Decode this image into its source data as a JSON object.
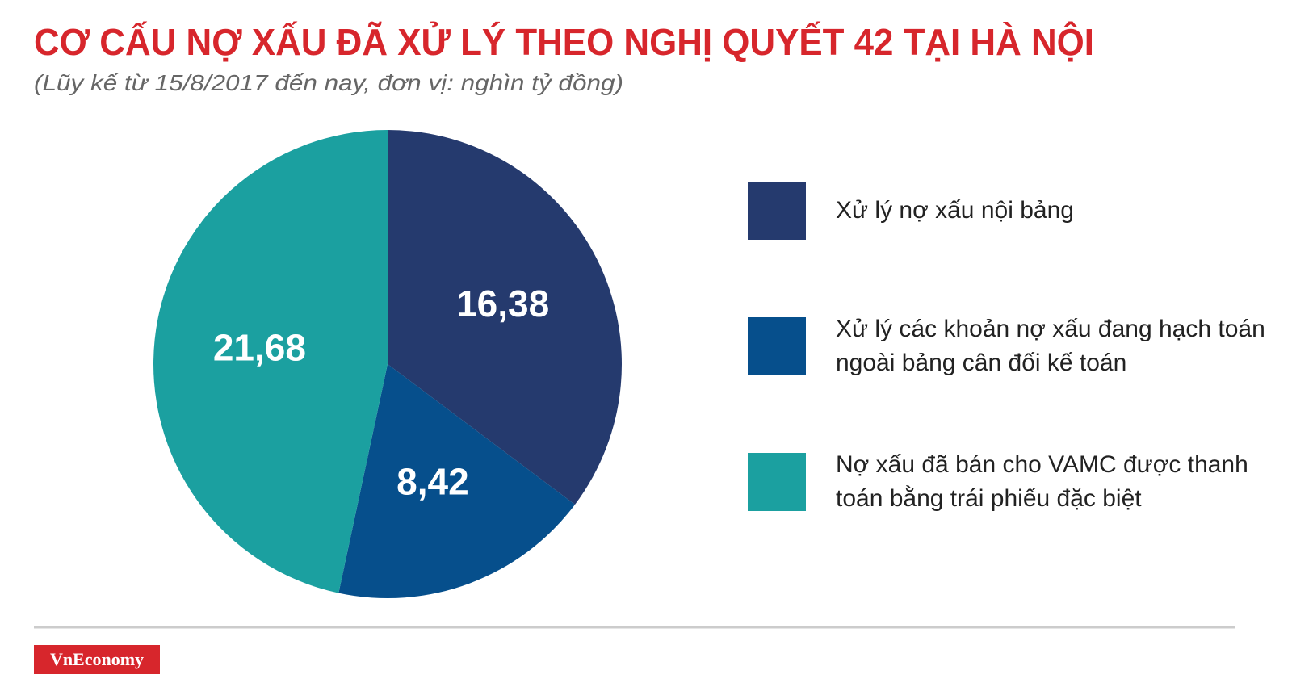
{
  "chart_data": {
    "type": "pie",
    "title": "CƠ CẤU NỢ XẤU ĐÃ XỬ LÝ THEO NGHỊ QUYẾT 42 TẠI HÀ NỘI",
    "subtitle": "(Lũy kế từ 15/8/2017 đến nay, đơn vị: nghìn tỷ đồng)",
    "categories": [
      "Xử lý nợ xấu nội bảng",
      "Xử lý các khoản nợ xấu đang hạch toán ngoài bảng cân đối kế toán",
      "Nợ xấu đã bán cho VAMC được thanh toán bằng trái phiếu đặc biệt"
    ],
    "values": [
      16.38,
      8.42,
      21.68
    ],
    "value_labels": [
      "16,38",
      "8,42",
      "21,68"
    ],
    "colors": [
      "#253a6e",
      "#064f8c",
      "#1ba0a0"
    ]
  },
  "source": "VnEconomy"
}
